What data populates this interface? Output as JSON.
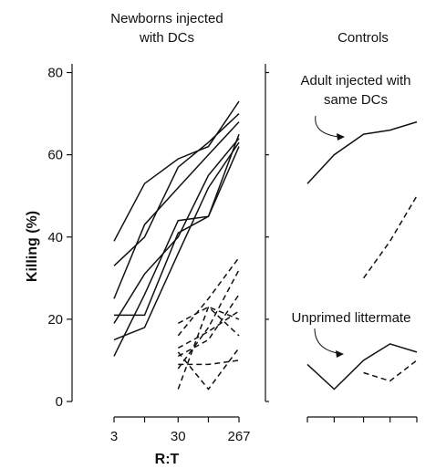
{
  "chart_data": [
    {
      "type": "line",
      "title": "Newborns injected with DCs",
      "title_lines": [
        "Newborns injected",
        "with DCs"
      ],
      "xlabel": "R:T",
      "ylabel": "Killing (%)",
      "x_ticks": [
        "3",
        "30",
        "267"
      ],
      "y_ticks": [
        0,
        20,
        40,
        60,
        80
      ],
      "ylim": [
        0,
        83
      ],
      "x_scale": "log",
      "series": [
        {
          "style": "solid",
          "x": [
            3,
            9,
            30,
            89,
            267
          ],
          "y": [
            39,
            53,
            59,
            62,
            73
          ]
        },
        {
          "style": "solid",
          "x": [
            3,
            9,
            30,
            89,
            267
          ],
          "y": [
            33,
            40,
            57,
            63,
            70
          ]
        },
        {
          "style": "solid",
          "x": [
            3,
            9,
            30,
            89,
            267
          ],
          "y": [
            25,
            43,
            52,
            60,
            68
          ]
        },
        {
          "style": "solid",
          "x": [
            3,
            9,
            30,
            89,
            267
          ],
          "y": [
            21,
            21,
            41,
            45,
            65
          ]
        },
        {
          "style": "solid",
          "x": [
            3,
            9,
            30,
            89,
            267
          ],
          "y": [
            19,
            31,
            40,
            55,
            64
          ]
        },
        {
          "style": "solid",
          "x": [
            3,
            9,
            30,
            89,
            267
          ],
          "y": [
            15,
            18,
            36,
            52,
            63
          ]
        },
        {
          "style": "solid",
          "x": [
            3,
            9,
            30,
            89,
            267
          ],
          "y": [
            11,
            26,
            44,
            45,
            62
          ]
        },
        {
          "style": "dashed",
          "x": [
            30,
            89,
            267
          ],
          "y": [
            19,
            23,
            20
          ]
        },
        {
          "style": "dashed",
          "x": [
            30,
            89,
            267
          ],
          "y": [
            16,
            25,
            35
          ]
        },
        {
          "style": "dashed",
          "x": [
            30,
            89,
            267
          ],
          "y": [
            13,
            17,
            22
          ]
        },
        {
          "style": "dashed",
          "x": [
            30,
            89,
            267
          ],
          "y": [
            11,
            15,
            26
          ]
        },
        {
          "style": "dashed",
          "x": [
            30,
            89,
            267
          ],
          "y": [
            9,
            9,
            10
          ]
        },
        {
          "style": "dashed",
          "x": [
            30,
            89,
            267
          ],
          "y": [
            8,
            18,
            32
          ]
        },
        {
          "style": "dashed",
          "x": [
            30,
            89,
            267
          ],
          "y": [
            3,
            23,
            16
          ]
        },
        {
          "style": "dashed",
          "x": [
            30,
            89,
            267
          ],
          "y": [
            12,
            3,
            13
          ]
        }
      ]
    },
    {
      "type": "line",
      "title": "Controls",
      "ylim": [
        0,
        83
      ],
      "x_scale": "log",
      "annotations": [
        {
          "text_lines": [
            "Adult injected with",
            "same DCs"
          ]
        },
        {
          "text_lines": [
            "Unprimed littermate"
          ]
        }
      ],
      "series": [
        {
          "style": "solid",
          "x": [
            3,
            9,
            30,
            89,
            267
          ],
          "y": [
            53,
            60,
            65,
            66,
            68
          ]
        },
        {
          "style": "dashed",
          "x": [
            30,
            89,
            267
          ],
          "y": [
            30,
            39,
            50
          ]
        },
        {
          "style": "solid",
          "x": [
            3,
            9,
            30,
            89,
            267
          ],
          "y": [
            9,
            3,
            10,
            14,
            12
          ]
        },
        {
          "style": "dashed",
          "x": [
            30,
            89,
            267
          ],
          "y": [
            7,
            5,
            10
          ]
        }
      ]
    }
  ]
}
